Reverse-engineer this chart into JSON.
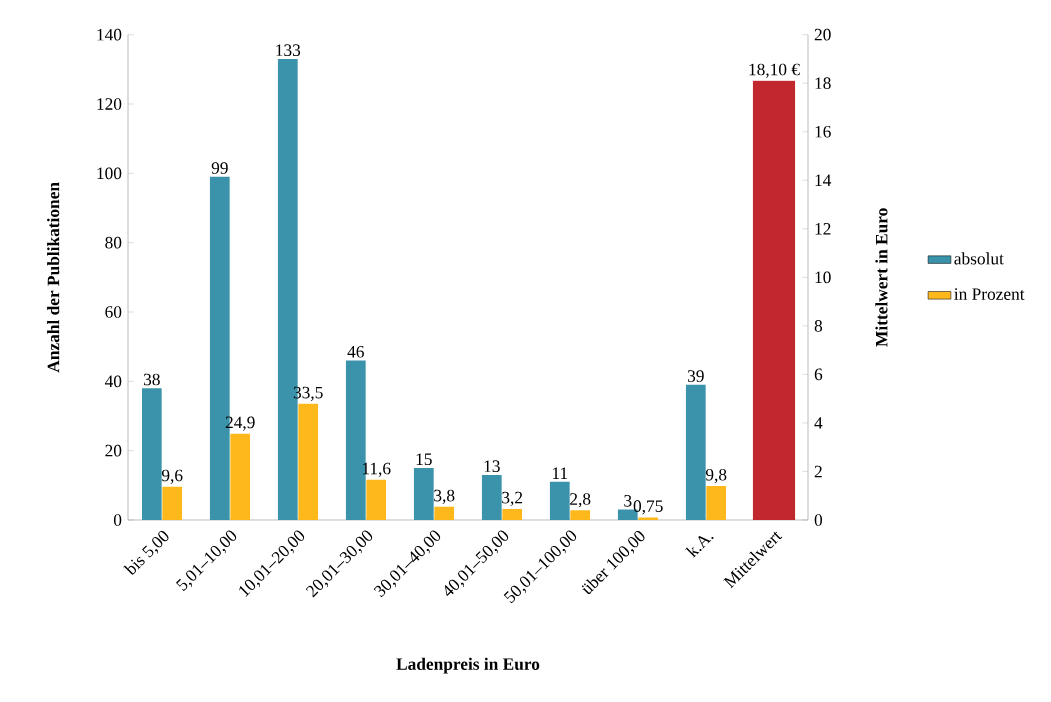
{
  "chart_data": {
    "type": "bar",
    "xlabel": "Ladenpreis in Euro",
    "ylabel": "Anzahl der Publikationen",
    "y2label": "Mittelwert in Euro",
    "categories": [
      "bis 5,00",
      "5,01–10,00",
      "10,01–20,00",
      "20,01–30,00",
      "30,01–40,00",
      "40,01–50,00",
      "50,01–100,00",
      "über 100,00",
      "k.A.",
      "Mittelwert"
    ],
    "series": [
      {
        "name": "absolut",
        "color": "#3a93ab",
        "values": [
          38,
          99,
          133,
          46,
          15,
          13,
          11,
          3,
          39,
          null
        ],
        "value_labels": [
          "38",
          "99",
          "133",
          "46",
          "15",
          "13",
          "11",
          "3",
          "39",
          null
        ]
      },
      {
        "name": "in Prozent",
        "color": "#ffb81c",
        "values": [
          9.6,
          24.9,
          33.5,
          11.6,
          3.8,
          3.2,
          2.8,
          0.75,
          9.8,
          null
        ],
        "value_labels": [
          "9,6",
          "24,9",
          "33,5",
          "11,6",
          "3,8",
          "3,2",
          "2,8",
          "0,75",
          "9,8",
          null
        ]
      },
      {
        "color": "#c0282e",
        "axis": "y2",
        "values": [
          null,
          null,
          null,
          null,
          null,
          null,
          null,
          null,
          null,
          18.1
        ],
        "value_labels": [
          null,
          null,
          null,
          null,
          null,
          null,
          null,
          null,
          null,
          "18,10 €"
        ]
      }
    ],
    "ylim": [
      0,
      140
    ],
    "yticks": [
      0,
      20,
      40,
      60,
      80,
      100,
      120,
      140
    ],
    "y2lim": [
      0,
      20
    ],
    "y2ticks": [
      0,
      2,
      4,
      6,
      8,
      10,
      12,
      14,
      16,
      18,
      20
    ],
    "legend": "right",
    "grid": false
  }
}
